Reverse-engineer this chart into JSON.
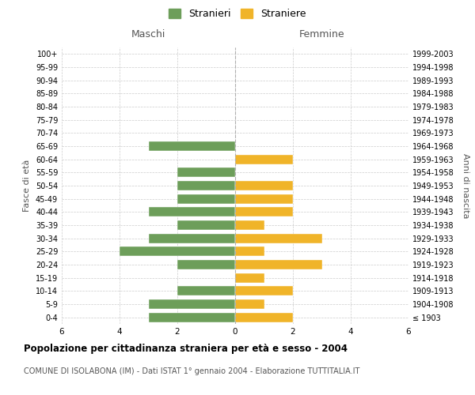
{
  "age_groups": [
    "100+",
    "95-99",
    "90-94",
    "85-89",
    "80-84",
    "75-79",
    "70-74",
    "65-69",
    "60-64",
    "55-59",
    "50-54",
    "45-49",
    "40-44",
    "35-39",
    "30-34",
    "25-29",
    "20-24",
    "15-19",
    "10-14",
    "5-9",
    "0-4"
  ],
  "birth_years": [
    "≤ 1903",
    "1904-1908",
    "1909-1913",
    "1914-1918",
    "1919-1923",
    "1924-1928",
    "1929-1933",
    "1934-1938",
    "1939-1943",
    "1944-1948",
    "1949-1953",
    "1954-1958",
    "1959-1963",
    "1964-1968",
    "1969-1973",
    "1974-1978",
    "1979-1983",
    "1984-1988",
    "1989-1993",
    "1994-1998",
    "1999-2003"
  ],
  "maschi": [
    0,
    0,
    0,
    0,
    0,
    0,
    0,
    3,
    0,
    2,
    2,
    2,
    3,
    2,
    3,
    4,
    2,
    0,
    2,
    3,
    3
  ],
  "femmine": [
    0,
    0,
    0,
    0,
    0,
    0,
    0,
    0,
    2,
    0,
    2,
    2,
    2,
    1,
    3,
    1,
    3,
    1,
    2,
    1,
    2
  ],
  "color_maschi": "#6d9e5a",
  "color_femmine": "#f0b429",
  "title": "Popolazione per cittadinanza straniera per età e sesso - 2004",
  "subtitle": "COMUNE DI ISOLABONA (IM) - Dati ISTAT 1° gennaio 2004 - Elaborazione TUTTITALIA.IT",
  "xlabel_left": "Maschi",
  "xlabel_right": "Femmine",
  "ylabel_left": "Fasce di età",
  "ylabel_right": "Anni di nascita",
  "legend_maschi": "Stranieri",
  "legend_femmine": "Straniere",
  "xlim": 6,
  "background_color": "#ffffff",
  "grid_color": "#cccccc"
}
